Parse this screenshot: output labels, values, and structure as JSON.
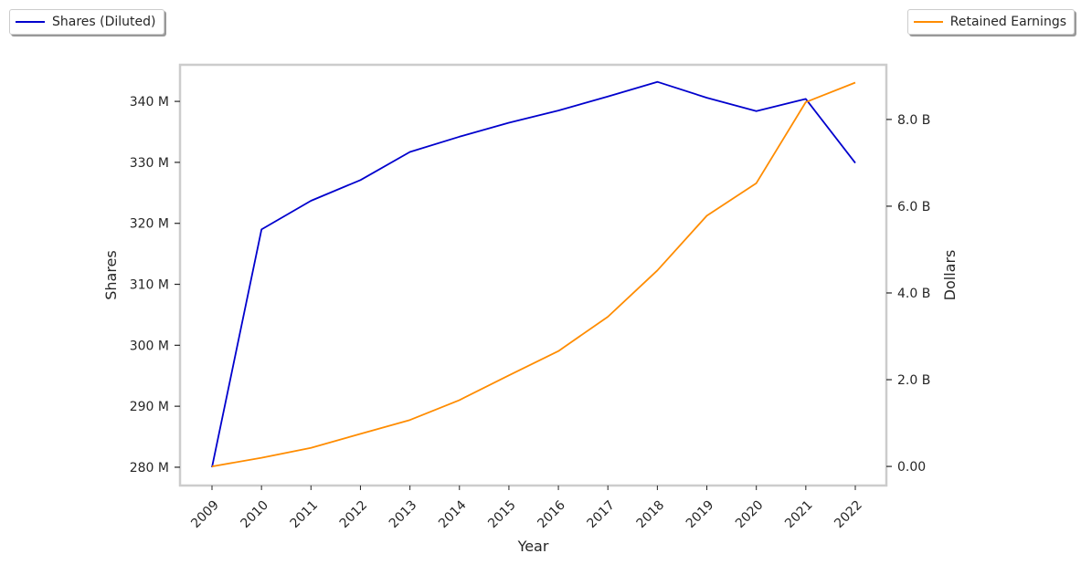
{
  "chart_data": {
    "type": "line",
    "x": [
      2009,
      2010,
      2011,
      2012,
      2013,
      2014,
      2015,
      2016,
      2017,
      2018,
      2019,
      2020,
      2021,
      2022
    ],
    "xlabel": "Year",
    "series": [
      {
        "name": "Shares (Diluted)",
        "axis": "left",
        "color": "#0000cd",
        "unit": "M",
        "values": [
          280.0,
          319.0,
          323.7,
          327.1,
          331.7,
          334.2,
          336.5,
          338.5,
          340.8,
          343.2,
          340.6,
          338.4,
          340.4,
          329.9
        ]
      },
      {
        "name": "Retained Earnings",
        "axis": "right",
        "color": "#ff8c00",
        "unit": "B",
        "values": [
          0.0,
          0.2,
          0.43,
          0.75,
          1.07,
          1.53,
          2.1,
          2.66,
          3.45,
          4.52,
          5.78,
          6.53,
          8.4,
          8.85
        ]
      }
    ],
    "y_left": {
      "label": "Shares",
      "ylim": [
        277,
        346
      ],
      "ticks": [
        280,
        290,
        300,
        310,
        320,
        330,
        340
      ],
      "tick_labels": [
        "280 M",
        "290 M",
        "300 M",
        "310 M",
        "320 M",
        "330 M",
        "340 M"
      ]
    },
    "y_right": {
      "label": "Dollars",
      "ylim": [
        -0.44,
        9.26
      ],
      "ticks": [
        0,
        2,
        4,
        6,
        8
      ],
      "tick_labels": [
        "0.00",
        "2.0 B",
        "4.0 B",
        "6.0 B",
        "8.0 B"
      ]
    },
    "grid": false,
    "legends": [
      {
        "series": "Shares (Diluted)",
        "placement": "top-left"
      },
      {
        "series": "Retained Earnings",
        "placement": "top-right"
      }
    ]
  }
}
